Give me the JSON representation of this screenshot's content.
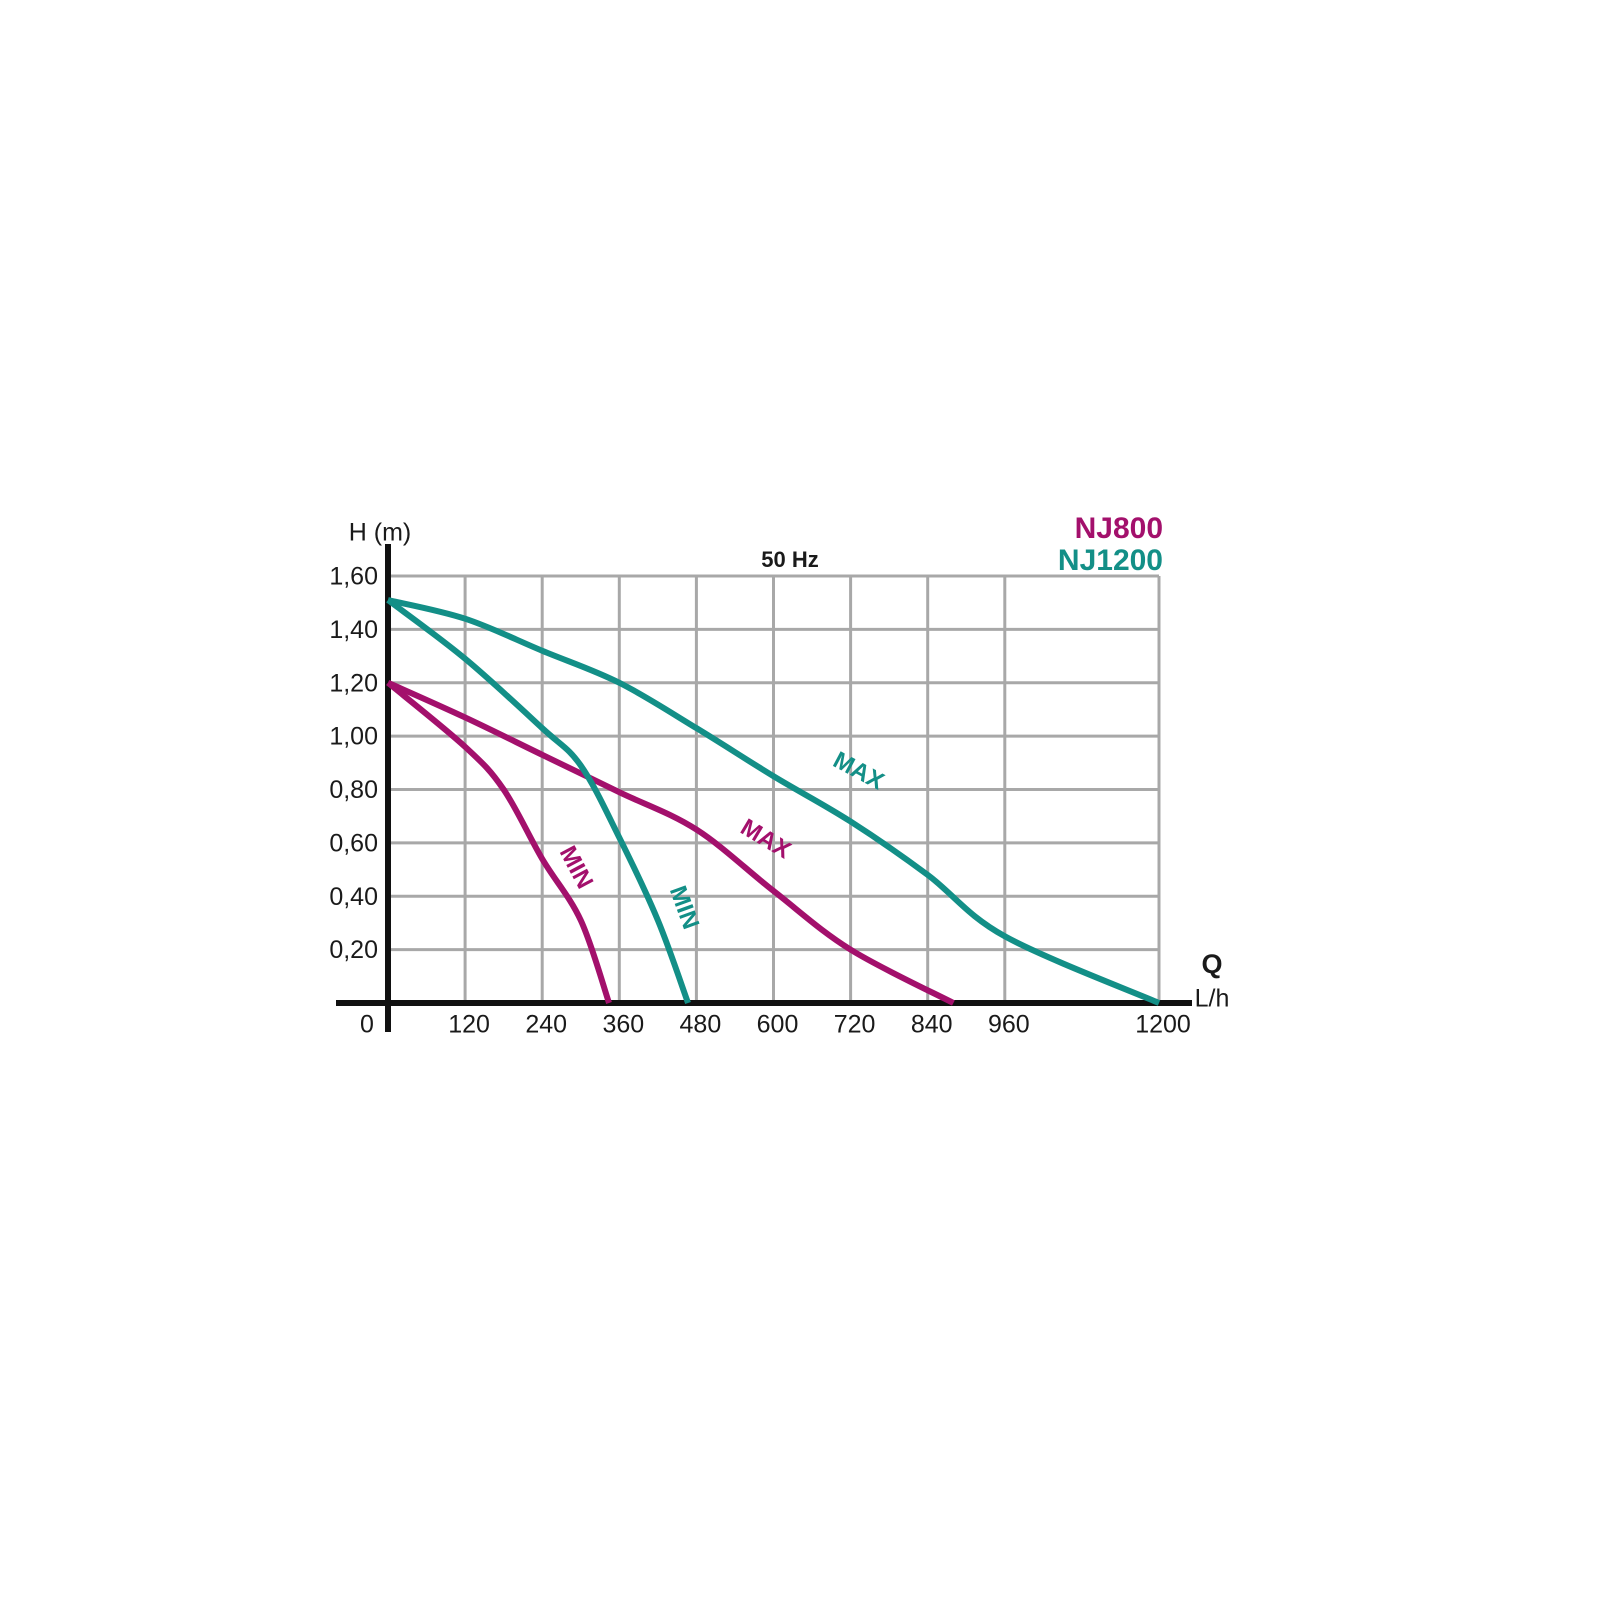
{
  "chart_data": {
    "type": "line",
    "title": "50 Hz",
    "y_label": "H (m)",
    "x_label": "Q",
    "x_unit": "L/h",
    "xlim": [
      0,
      1200
    ],
    "ylim": [
      0,
      1.6
    ],
    "xticks": [
      0,
      120,
      240,
      360,
      480,
      600,
      720,
      840,
      960,
      1200
    ],
    "yticks": [
      {
        "value": 0.2,
        "label": "0,20"
      },
      {
        "value": 0.4,
        "label": "0,40"
      },
      {
        "value": 0.6,
        "label": "0,60"
      },
      {
        "value": 0.8,
        "label": "0,80"
      },
      {
        "value": 1.0,
        "label": "1,00"
      },
      {
        "value": 1.2,
        "label": "1,20"
      },
      {
        "value": 1.4,
        "label": "1,40"
      },
      {
        "value": 1.6,
        "label": "1,60"
      }
    ],
    "grid": true,
    "models": [
      {
        "name": "NJ800",
        "color": "#a3106c",
        "series": [
          {
            "name": "MIN",
            "x": [
              0,
              120,
              180,
              240,
              300,
              344
            ],
            "values": [
              1.2,
              0.96,
              0.8,
              0.54,
              0.31,
              0
            ]
          },
          {
            "name": "MAX",
            "x": [
              0,
              120,
              240,
              360,
              480,
              600,
              720,
              880
            ],
            "values": [
              1.2,
              1.07,
              0.93,
              0.79,
              0.65,
              0.42,
              0.2,
              0
            ]
          }
        ]
      },
      {
        "name": "NJ1200",
        "color": "#138f87",
        "series": [
          {
            "name": "MIN",
            "x": [
              0,
              120,
              240,
              300,
              360,
              420,
              467
            ],
            "values": [
              1.51,
              1.29,
              1.03,
              0.89,
              0.62,
              0.31,
              0
            ]
          },
          {
            "name": "MAX",
            "x": [
              0,
              120,
              240,
              360,
              480,
              600,
              720,
              840,
              960,
              1200
            ],
            "values": [
              1.51,
              1.44,
              1.32,
              1.2,
              1.03,
              0.85,
              0.68,
              0.48,
              0.25,
              0
            ]
          }
        ]
      }
    ]
  }
}
